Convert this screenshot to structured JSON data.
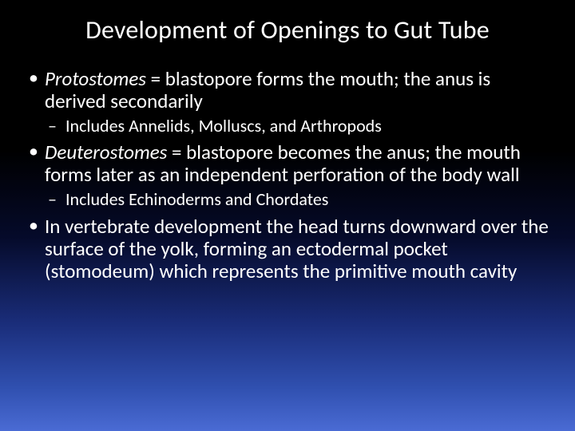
{
  "title": "Development of Openings to Gut Tube",
  "bullets": [
    {
      "term": "Protostomes",
      "definition": "  = blastopore forms the mouth; the anus is derived secondarily",
      "sub": "Includes Annelids, Molluscs, and Arthropods"
    },
    {
      "term": "Deuterostomes",
      "definition": "  = blastopore becomes the anus; the mouth forms later as an independent perforation of the body wall",
      "sub": "Includes Echinoderms and Chordates"
    },
    {
      "plain": "In vertebrate development the head turns downward over the surface of the yolk, forming an ectodermal pocket (stomodeum) which represents the primitive mouth cavity"
    }
  ],
  "style": {
    "background_gradient": [
      "#000000",
      "#000000",
      "#050a2a",
      "#1a2d7a",
      "#3050b0",
      "#4a6bd4"
    ],
    "text_color": "#ffffff",
    "title_fontsize": 32,
    "bullet_fontsize": 25,
    "sub_fontsize": 22,
    "font_family": "Calibri"
  }
}
